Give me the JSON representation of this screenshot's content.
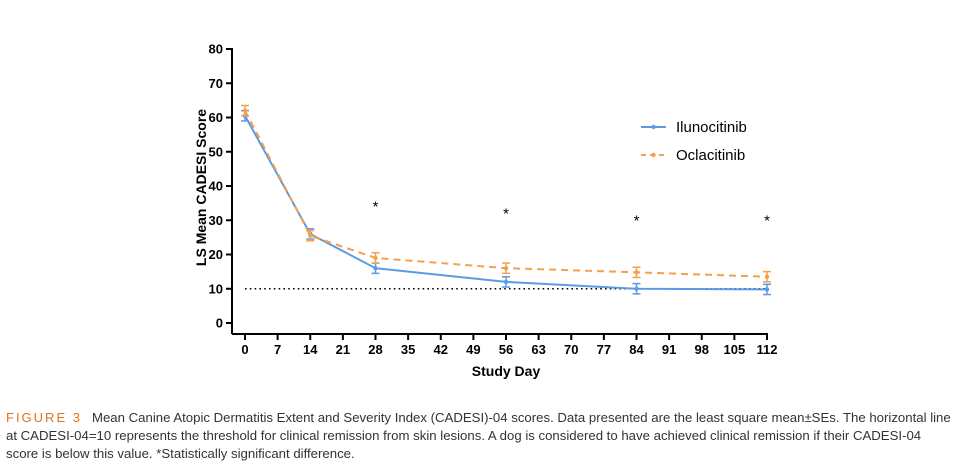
{
  "chart_data": {
    "type": "line",
    "xlabel": "Study Day",
    "ylabel": "LS Mean CADESI Score",
    "x_ticks": [
      0,
      7,
      14,
      21,
      28,
      35,
      42,
      49,
      56,
      63,
      70,
      77,
      84,
      91,
      98,
      105,
      112
    ],
    "y_ticks": [
      0,
      10,
      20,
      30,
      40,
      50,
      60,
      70,
      80
    ],
    "xlim": [
      0,
      112
    ],
    "ylim": [
      0,
      80
    ],
    "grid": false,
    "legend_position": "top-right",
    "series": [
      {
        "name": "Ilunocitinib",
        "color": "#5b9be6",
        "style": "solid",
        "x": [
          0,
          14,
          28,
          56,
          84,
          112
        ],
        "values": [
          60.5,
          26,
          16,
          12,
          10,
          9.8
        ],
        "se": [
          1.5,
          1.5,
          1.5,
          1.5,
          1.5,
          1.5
        ]
      },
      {
        "name": "Oclacitinib",
        "color": "#f5a04a",
        "style": "dashed",
        "x": [
          0,
          14,
          28,
          56,
          84,
          112
        ],
        "values": [
          62,
          25.5,
          19,
          16,
          14.8,
          13.5
        ],
        "se": [
          1.5,
          1.5,
          1.5,
          1.5,
          1.5,
          1.5
        ]
      }
    ],
    "reference_line": {
      "y": 10,
      "style": "dotted",
      "color": "#000000"
    },
    "annotations": [
      {
        "x": 28,
        "y": 34,
        "text": "*"
      },
      {
        "x": 56,
        "y": 32,
        "text": "*"
      },
      {
        "x": 84,
        "y": 30,
        "text": "*"
      },
      {
        "x": 112,
        "y": 30,
        "text": "*"
      }
    ]
  },
  "caption": {
    "label": "FIGURE 3",
    "text": "Mean Canine Atopic Dermatitis Extent and Severity Index (CADESI)-04 scores. Data presented are the least square mean±SEs. The horizontal line at CADESI-04=10 represents the threshold for clinical remission from skin lesions. A dog is considered to have achieved clinical remission if their CADESI-04 score is below this value. *Statistically significant difference."
  }
}
